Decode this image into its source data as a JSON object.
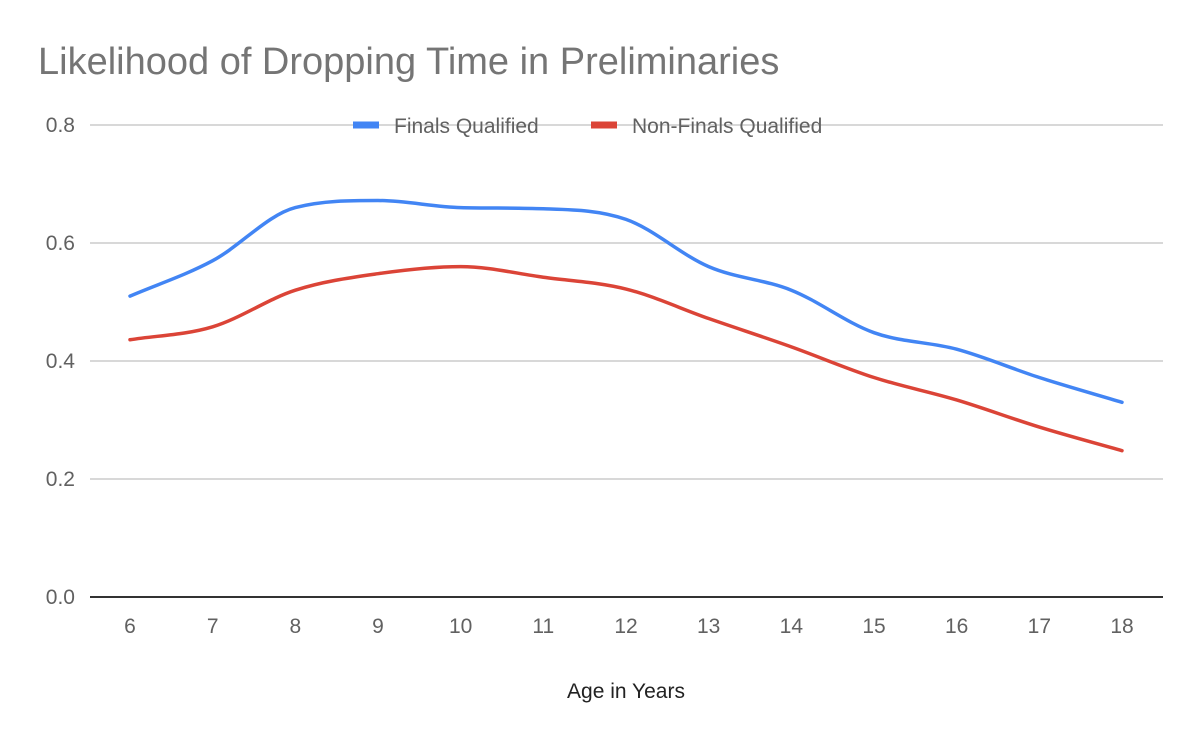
{
  "chart_data": {
    "type": "line",
    "title": "Likelihood of Dropping Time in Preliminaries",
    "xlabel": "Age in Years",
    "ylabel": "",
    "categories": [
      "6",
      "7",
      "8",
      "9",
      "10",
      "11",
      "12",
      "13",
      "14",
      "15",
      "16",
      "17",
      "18"
    ],
    "ylim": [
      0,
      0.8
    ],
    "yticks": [
      "0.0",
      "0.2",
      "0.4",
      "0.6",
      "0.8"
    ],
    "grid": true,
    "legend_position": "top",
    "series": [
      {
        "name": "Finals Qualified",
        "color": "#4285f4",
        "values": [
          0.51,
          0.57,
          0.66,
          0.672,
          0.66,
          0.658,
          0.64,
          0.56,
          0.52,
          0.448,
          0.42,
          0.372,
          0.33
        ]
      },
      {
        "name": "Non-Finals Qualified",
        "color": "#db4437",
        "values": [
          0.436,
          0.458,
          0.52,
          0.548,
          0.56,
          0.542,
          0.522,
          0.472,
          0.424,
          0.372,
          0.334,
          0.288,
          0.248
        ]
      }
    ]
  }
}
